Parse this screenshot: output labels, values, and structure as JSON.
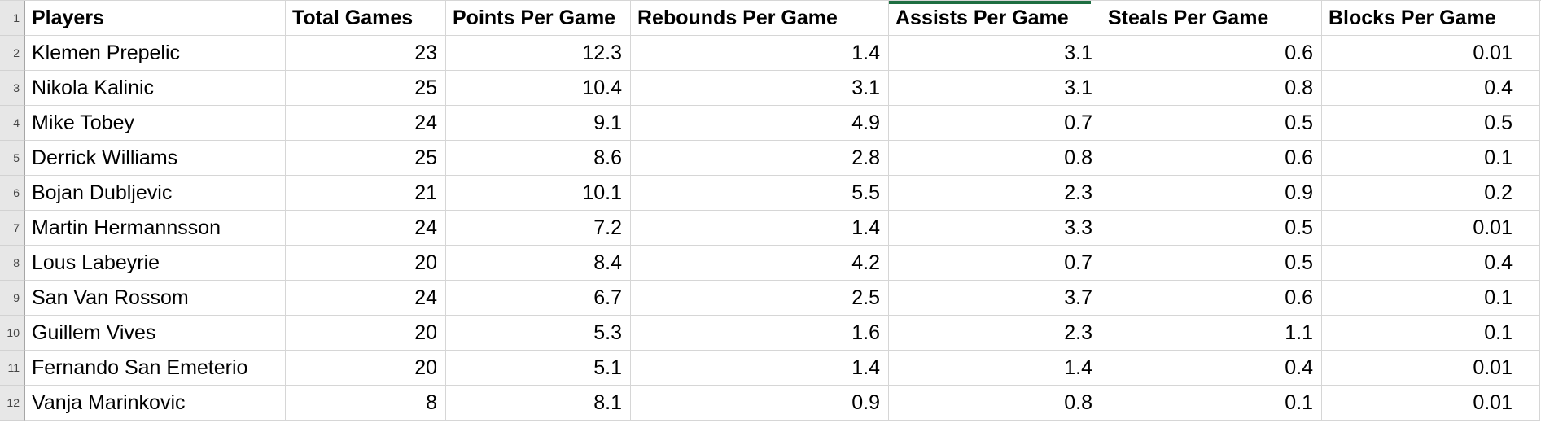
{
  "sheet": {
    "title": "player-stats-spreadsheet",
    "gridline_color": "#d6d6d6",
    "gutter_bg": "#e7e7e7",
    "accent": {
      "green_border_color": "#1e6e41",
      "green_border_location": "top of Assists Per Game header cell"
    },
    "row_numbers": [
      "1",
      "2",
      "3",
      "4",
      "5",
      "6",
      "7",
      "8",
      "9",
      "10",
      "11",
      "12"
    ],
    "headers": [
      "Players",
      "Total Games",
      "Points Per Game",
      "Rebounds Per Game",
      "Assists Per Game",
      "Steals Per Game",
      "Blocks Per Game"
    ],
    "rows": [
      [
        "Klemen Prepelic",
        "23",
        "12.3",
        "1.4",
        "3.1",
        "0.6",
        "0.01"
      ],
      [
        "Nikola Kalinic",
        "25",
        "10.4",
        "3.1",
        "3.1",
        "0.8",
        "0.4"
      ],
      [
        "Mike Tobey",
        "24",
        "9.1",
        "4.9",
        "0.7",
        "0.5",
        "0.5"
      ],
      [
        "Derrick Williams",
        "25",
        "8.6",
        "2.8",
        "0.8",
        "0.6",
        "0.1"
      ],
      [
        "Bojan Dubljevic",
        "21",
        "10.1",
        "5.5",
        "2.3",
        "0.9",
        "0.2"
      ],
      [
        "Martin Hermannsson",
        "24",
        "7.2",
        "1.4",
        "3.3",
        "0.5",
        "0.01"
      ],
      [
        "Lous Labeyrie",
        "20",
        "8.4",
        "4.2",
        "0.7",
        "0.5",
        "0.4"
      ],
      [
        "San Van Rossom",
        "24",
        "6.7",
        "2.5",
        "3.7",
        "0.6",
        "0.1"
      ],
      [
        "Guillem Vives",
        "20",
        "5.3",
        "1.6",
        "2.3",
        "1.1",
        "0.1"
      ],
      [
        "Fernando San Emeterio",
        "20",
        "5.1",
        "1.4",
        "1.4",
        "0.4",
        "0.01"
      ],
      [
        "Vanja Marinkovic",
        "8",
        "8.1",
        "0.9",
        "0.8",
        "0.1",
        "0.01"
      ]
    ]
  }
}
